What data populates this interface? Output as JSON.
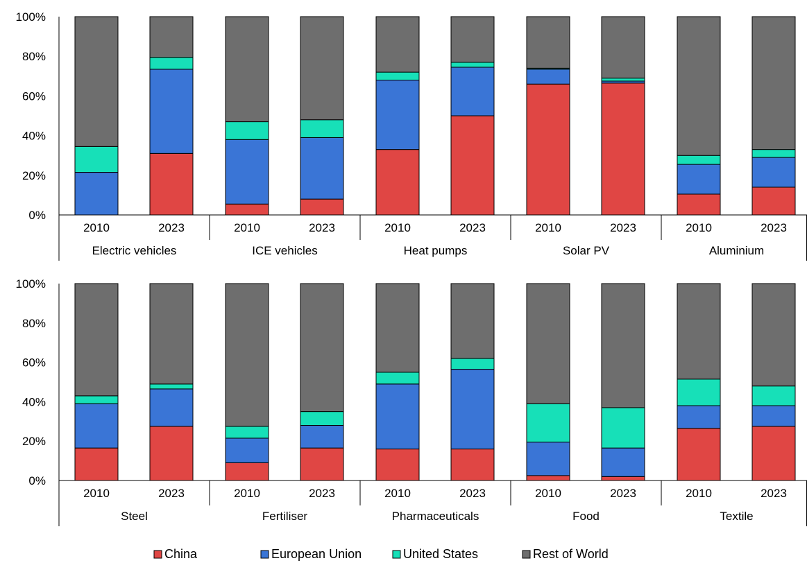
{
  "chart_data": [
    {
      "type": "bar",
      "stacked": true,
      "ylim": [
        0,
        100
      ],
      "y_ticks": [
        "0%",
        "20%",
        "40%",
        "60%",
        "80%",
        "100%"
      ],
      "groups": [
        "Electric vehicles",
        "ICE vehicles",
        "Heat pumps",
        "Solar PV",
        "Aluminium"
      ],
      "years": [
        "2010",
        "2023"
      ],
      "series": [
        {
          "name": "China",
          "values": [
            0,
            31,
            5.5,
            8,
            33,
            50,
            66,
            66.5,
            10.5,
            14
          ]
        },
        {
          "name": "European Union",
          "values": [
            21.5,
            42.5,
            32.5,
            31,
            35,
            24.5,
            7.5,
            1,
            15,
            15
          ]
        },
        {
          "name": "United States",
          "values": [
            13,
            6,
            9,
            9,
            4,
            2.5,
            0.5,
            1.5,
            4.5,
            4
          ]
        },
        {
          "name": "Rest of World",
          "values": [
            65.5,
            20.5,
            53,
            52,
            28,
            23,
            26,
            31,
            70,
            67
          ]
        }
      ]
    },
    {
      "type": "bar",
      "stacked": true,
      "ylim": [
        0,
        100
      ],
      "y_ticks": [
        "0%",
        "20%",
        "40%",
        "60%",
        "80%",
        "100%"
      ],
      "groups": [
        "Steel",
        "Fertiliser",
        "Pharmaceuticals",
        "Food",
        "Textile"
      ],
      "years": [
        "2010",
        "2023"
      ],
      "series": [
        {
          "name": "China",
          "values": [
            16.5,
            27.5,
            9,
            16.5,
            16,
            16,
            2.5,
            2,
            26.5,
            27.5
          ]
        },
        {
          "name": "European Union",
          "values": [
            22.5,
            19,
            12.5,
            11.5,
            33,
            40.5,
            17,
            14.5,
            11.5,
            10.5
          ]
        },
        {
          "name": "United States",
          "values": [
            4,
            2.5,
            6,
            7,
            6,
            5.5,
            19.5,
            20.5,
            13.5,
            10
          ]
        },
        {
          "name": "Rest of World",
          "values": [
            57,
            51,
            72.5,
            65,
            45,
            38,
            61,
            63,
            48.5,
            52
          ]
        }
      ]
    }
  ],
  "legend": [
    {
      "label": "China",
      "color": "#e04644"
    },
    {
      "label": "European Union",
      "color": "#3a75d6"
    },
    {
      "label": "United States",
      "color": "#17e0b8"
    },
    {
      "label": "Rest of World",
      "color": "#6e6e6e"
    }
  ]
}
